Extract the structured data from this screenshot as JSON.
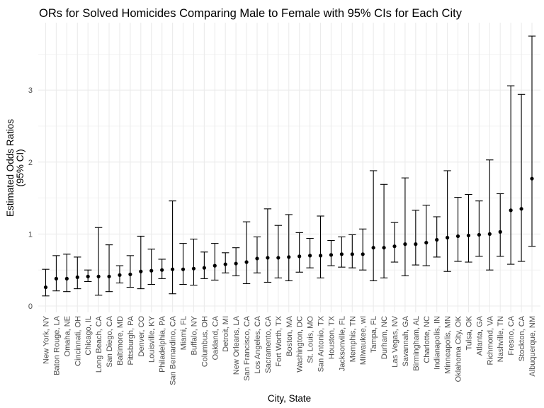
{
  "chart_data": {
    "type": "errorbar",
    "title": "ORs for Solved Homicides Comparing Male to Female with 95% CIs for Each City",
    "xlabel": "City, State",
    "ylabel_lines": [
      "Estimated Odds Ratios",
      "(95% CI)"
    ],
    "ylim": [
      0,
      3.78
    ],
    "yticks": [
      0,
      1,
      2,
      3
    ],
    "grid": true,
    "colors": {
      "point": "#000000",
      "errorbar": "#000000",
      "grid": "#ebebeb",
      "background": "#ffffff"
    },
    "categories": [
      "New York, NY",
      "Baton Rouge, LA",
      "Omaha, NE",
      "Cincinnati, OH",
      "Chicago, IL",
      "Long Beach, CA",
      "San Diego, CA",
      "Baltimore, MD",
      "Pittsburgh, PA",
      "Denver, CO",
      "Louisville, KY",
      "Philadelphia, PA",
      "San Bernardino, CA",
      "Miami, FL",
      "Buffalo, NY",
      "Columbus, OH",
      "Oakland, CA",
      "Detroit, MI",
      "New Orleans, LA",
      "San Francisco, CA",
      "Los Angeles, CA",
      "Sacramento, CA",
      "Fort Worth, TX",
      "Boston, MA",
      "Washington, DC",
      "St. Louis, MO",
      "San Antonio, TX",
      "Houston, TX",
      "Jacksonville, FL",
      "Memphis, TN",
      "Milwaukee, wI",
      "Tampa, FL",
      "Durham, NC",
      "Las Vegas, NV",
      "Savannah, GA",
      "Birmingham, AL",
      "Charlotte, NC",
      "Indianapolis, IN",
      "Minneapolis, MN",
      "Oklahoma City, OK",
      "Tulsa, OK",
      "Atlanta, GA",
      "Richmond, VA",
      "Nashville, TN",
      "Fresno, CA",
      "Stockton, CA",
      "Albuquerque, NM"
    ],
    "estimate": [
      0.26,
      0.38,
      0.38,
      0.4,
      0.41,
      0.41,
      0.41,
      0.43,
      0.44,
      0.48,
      0.49,
      0.5,
      0.51,
      0.51,
      0.52,
      0.53,
      0.56,
      0.58,
      0.59,
      0.61,
      0.66,
      0.67,
      0.67,
      0.68,
      0.69,
      0.7,
      0.7,
      0.71,
      0.72,
      0.72,
      0.72,
      0.81,
      0.81,
      0.83,
      0.86,
      0.86,
      0.88,
      0.92,
      0.95,
      0.97,
      0.98,
      0.99,
      1.0,
      1.03,
      1.33,
      1.35,
      1.77
    ],
    "ci_low": [
      0.14,
      0.21,
      0.2,
      0.24,
      0.34,
      0.15,
      0.2,
      0.32,
      0.26,
      0.24,
      0.3,
      0.38,
      0.17,
      0.3,
      0.29,
      0.38,
      0.36,
      0.46,
      0.42,
      0.31,
      0.46,
      0.33,
      0.39,
      0.35,
      0.47,
      0.53,
      0.39,
      0.56,
      0.54,
      0.53,
      0.5,
      0.35,
      0.39,
      0.61,
      0.42,
      0.57,
      0.56,
      0.68,
      0.48,
      0.62,
      0.61,
      0.69,
      0.5,
      0.69,
      0.58,
      0.62,
      0.83
    ],
    "ci_high": [
      0.51,
      0.7,
      0.72,
      0.68,
      0.5,
      1.09,
      0.85,
      0.56,
      0.7,
      0.97,
      0.79,
      0.65,
      1.46,
      0.87,
      0.93,
      0.75,
      0.87,
      0.74,
      0.81,
      1.17,
      0.96,
      1.35,
      1.12,
      1.27,
      1.02,
      0.94,
      1.25,
      0.91,
      0.96,
      0.99,
      1.07,
      1.88,
      1.69,
      1.16,
      1.78,
      1.33,
      1.4,
      1.24,
      1.88,
      1.51,
      1.55,
      1.46,
      2.03,
      1.56,
      3.06,
      2.94,
      3.75
    ]
  }
}
